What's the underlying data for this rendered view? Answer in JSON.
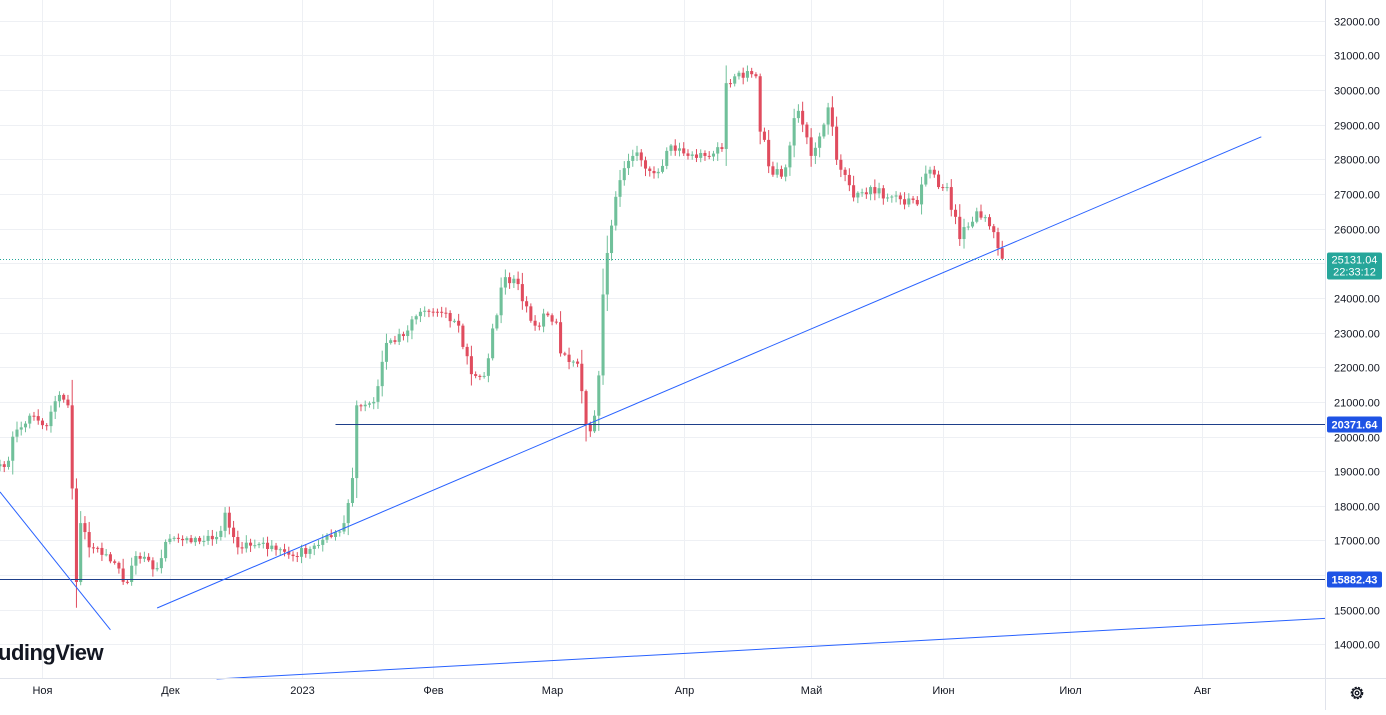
{
  "watermark": "udingView",
  "settings_icon": "gear-icon",
  "colors": {
    "up": "#26a69a",
    "up_light": "#70c09a",
    "down": "#e04c5e",
    "trendline": "#2962ff",
    "hline": "#1e3f8a",
    "grid": "#eef0f4",
    "price_label_bg": "#26a69a",
    "level_label_bg": "#1e53e5"
  },
  "chart_data": {
    "type": "candlestick",
    "title": "",
    "xlabel": "",
    "ylabel": "",
    "x_ticks": [
      {
        "label": "Ноя",
        "date": "2022-11-01"
      },
      {
        "label": "Дек",
        "date": "2022-12-01"
      },
      {
        "label": "2023",
        "date": "2023-01-01"
      },
      {
        "label": "Фев",
        "date": "2023-02-01"
      },
      {
        "label": "Мар",
        "date": "2023-03-01"
      },
      {
        "label": "Апр",
        "date": "2023-04-01"
      },
      {
        "label": "Май",
        "date": "2023-05-01"
      },
      {
        "label": "Июн",
        "date": "2023-06-01"
      },
      {
        "label": "Июл",
        "date": "2023-07-01"
      },
      {
        "label": "Авг",
        "date": "2023-08-01"
      }
    ],
    "y_ticks": [
      "14000.00",
      "15000.00",
      "16000.00",
      "17000.00",
      "18000.00",
      "19000.00",
      "20000.00",
      "21000.00",
      "22000.00",
      "23000.00",
      "24000.00",
      "25000.00",
      "26000.00",
      "27000.00",
      "28000.00",
      "29000.00",
      "30000.00",
      "31000.00",
      "32000.00"
    ],
    "ylim": [
      13000,
      32600
    ],
    "xlim": [
      "2022-10-22",
      "2023-08-30"
    ],
    "grid": true,
    "current_price": {
      "value": 25131.04,
      "label": "25131.04",
      "countdown": "22:33:12"
    },
    "horizontal_levels": [
      {
        "value": 20371.64,
        "label": "20371.64",
        "start": "2023-01-09"
      },
      {
        "value": 15882.43,
        "label": "15882.43",
        "start": "2022-10-22"
      }
    ],
    "trendlines": [
      {
        "x1": "2022-11-28",
        "y1": 15050,
        "x2": "2023-08-15",
        "y2": 28650
      },
      {
        "x1": "2022-10-22",
        "y1": 18400,
        "x2": "2022-11-17",
        "y2": 14420
      },
      {
        "x1": "2022-12-12",
        "y1": 13000,
        "x2": "2023-08-30",
        "y2": 14750
      }
    ],
    "anchors": [
      [
        "2022-10-22",
        19200
      ],
      [
        "2022-10-24",
        19300
      ],
      [
        "2022-10-26",
        20200
      ],
      [
        "2022-10-29",
        20600
      ],
      [
        "2022-11-02",
        20300
      ],
      [
        "2022-11-05",
        21200
      ],
      [
        "2022-11-07",
        20900
      ],
      [
        "2022-11-08",
        18500
      ],
      [
        "2022-11-09",
        15800
      ],
      [
        "2022-11-10",
        17500
      ],
      [
        "2022-11-12",
        16800
      ],
      [
        "2022-11-16",
        16600
      ],
      [
        "2022-11-21",
        15800
      ],
      [
        "2022-11-23",
        16550
      ],
      [
        "2022-11-28",
        16200
      ],
      [
        "2022-12-01",
        17050
      ],
      [
        "2022-12-06",
        16950
      ],
      [
        "2022-12-12",
        17100
      ],
      [
        "2022-12-14",
        17800
      ],
      [
        "2022-12-17",
        16800
      ],
      [
        "2022-12-20",
        16850
      ],
      [
        "2022-12-25",
        16850
      ],
      [
        "2022-12-30",
        16550
      ],
      [
        "2023-01-04",
        16850
      ],
      [
        "2023-01-08",
        17100
      ],
      [
        "2023-01-11",
        17500
      ],
      [
        "2023-01-13",
        18800
      ],
      [
        "2023-01-14",
        20900
      ],
      [
        "2023-01-18",
        21000
      ],
      [
        "2023-01-21",
        22700
      ],
      [
        "2023-01-25",
        22900
      ],
      [
        "2023-01-29",
        23600
      ],
      [
        "2023-02-02",
        23600
      ],
      [
        "2023-02-07",
        23200
      ],
      [
        "2023-02-10",
        21800
      ],
      [
        "2023-02-13",
        21750
      ],
      [
        "2023-02-16",
        23500
      ],
      [
        "2023-02-18",
        24600
      ],
      [
        "2023-02-21",
        24400
      ],
      [
        "2023-02-25",
        23200
      ],
      [
        "2023-02-28",
        23500
      ],
      [
        "2023-03-02",
        23300
      ],
      [
        "2023-03-03",
        22400
      ],
      [
        "2023-03-07",
        22100
      ],
      [
        "2023-03-09",
        20350
      ],
      [
        "2023-03-10",
        20150
      ],
      [
        "2023-03-11",
        20600
      ],
      [
        "2023-03-13",
        24100
      ],
      [
        "2023-03-17",
        27400
      ],
      [
        "2023-03-21",
        28200
      ],
      [
        "2023-03-25",
        27600
      ],
      [
        "2023-03-29",
        28400
      ],
      [
        "2023-04-02",
        28100
      ],
      [
        "2023-04-06",
        28100
      ],
      [
        "2023-04-10",
        28300
      ],
      [
        "2023-04-11",
        30200
      ],
      [
        "2023-04-14",
        30500
      ],
      [
        "2023-04-18",
        30400
      ],
      [
        "2023-04-19",
        28800
      ],
      [
        "2023-04-21",
        27800
      ],
      [
        "2023-04-24",
        27500
      ],
      [
        "2023-04-26",
        28400
      ],
      [
        "2023-04-28",
        29400
      ],
      [
        "2023-05-01",
        28100
      ],
      [
        "2023-05-05",
        29500
      ],
      [
        "2023-05-08",
        27700
      ],
      [
        "2023-05-11",
        26900
      ],
      [
        "2023-05-15",
        27200
      ],
      [
        "2023-05-19",
        26900
      ],
      [
        "2023-05-22",
        26850
      ],
      [
        "2023-05-26",
        26700
      ],
      [
        "2023-05-29",
        27700
      ],
      [
        "2023-05-31",
        27200
      ],
      [
        "2023-06-02",
        27200
      ],
      [
        "2023-06-05",
        25700
      ],
      [
        "2023-06-09",
        26500
      ],
      [
        "2023-06-13",
        25900
      ],
      [
        "2023-06-15",
        25131
      ]
    ]
  }
}
